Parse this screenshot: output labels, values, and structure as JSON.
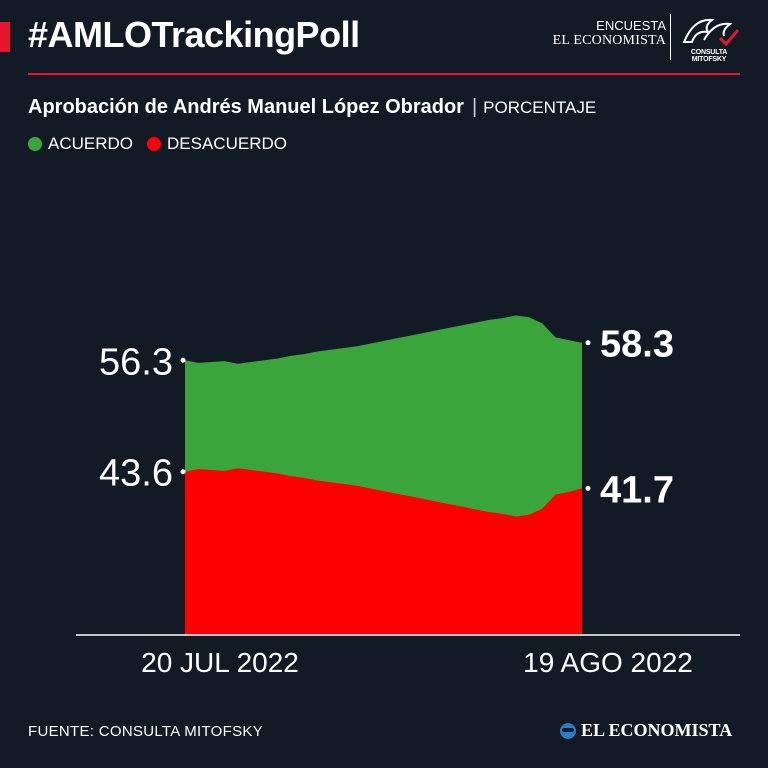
{
  "header": {
    "hashtag": "#AMLOTrackingPoll",
    "brand_line1": "ENCUESTA",
    "brand_line2": "EL ECONOMISTA",
    "partner_logo_text": "CONSULTA MITOFSKY"
  },
  "subtitle": {
    "title": "Aprobación de Andrés Manuel López Obrador",
    "unit": "PORCENTAJE"
  },
  "legend": [
    {
      "label": "ACUERDO",
      "color": "#3aa53a"
    },
    {
      "label": "DESACUERDO",
      "color": "#ff0000"
    }
  ],
  "chart_data": {
    "type": "area",
    "x_start_label": "20 JUL 2022",
    "x_end_label": "19 AGO 2022",
    "series": [
      {
        "name": "ACUERDO",
        "color": "#3aa53a",
        "values": [
          56.3,
          56.0,
          56.1,
          56.2,
          55.9,
          56.1,
          56.3,
          56.5,
          56.8,
          57.0,
          57.3,
          57.5,
          57.7,
          57.9,
          58.2,
          58.5,
          58.8,
          59.1,
          59.4,
          59.7,
          60.0,
          60.3,
          60.6,
          60.9,
          61.1,
          61.4,
          61.2,
          60.5,
          58.9,
          58.6,
          58.3
        ],
        "start_label": "56.3",
        "end_label": "58.3"
      },
      {
        "name": "DESACUERDO",
        "color": "#ff0000",
        "values": [
          43.6,
          43.9,
          43.8,
          43.7,
          44.0,
          43.8,
          43.6,
          43.4,
          43.1,
          42.9,
          42.6,
          42.4,
          42.2,
          42.0,
          41.7,
          41.4,
          41.1,
          40.8,
          40.5,
          40.2,
          39.9,
          39.6,
          39.3,
          39.0,
          38.8,
          38.5,
          38.7,
          39.4,
          41.0,
          41.3,
          41.7
        ],
        "start_label": "43.6",
        "end_label": "41.7"
      }
    ],
    "ylim": [
      25,
      70
    ],
    "grid": false,
    "legend_position": "top-left"
  },
  "footer": {
    "source": "FUENTE: CONSULTA MITOFSKY",
    "brand": "EL ECONOMISTA"
  }
}
